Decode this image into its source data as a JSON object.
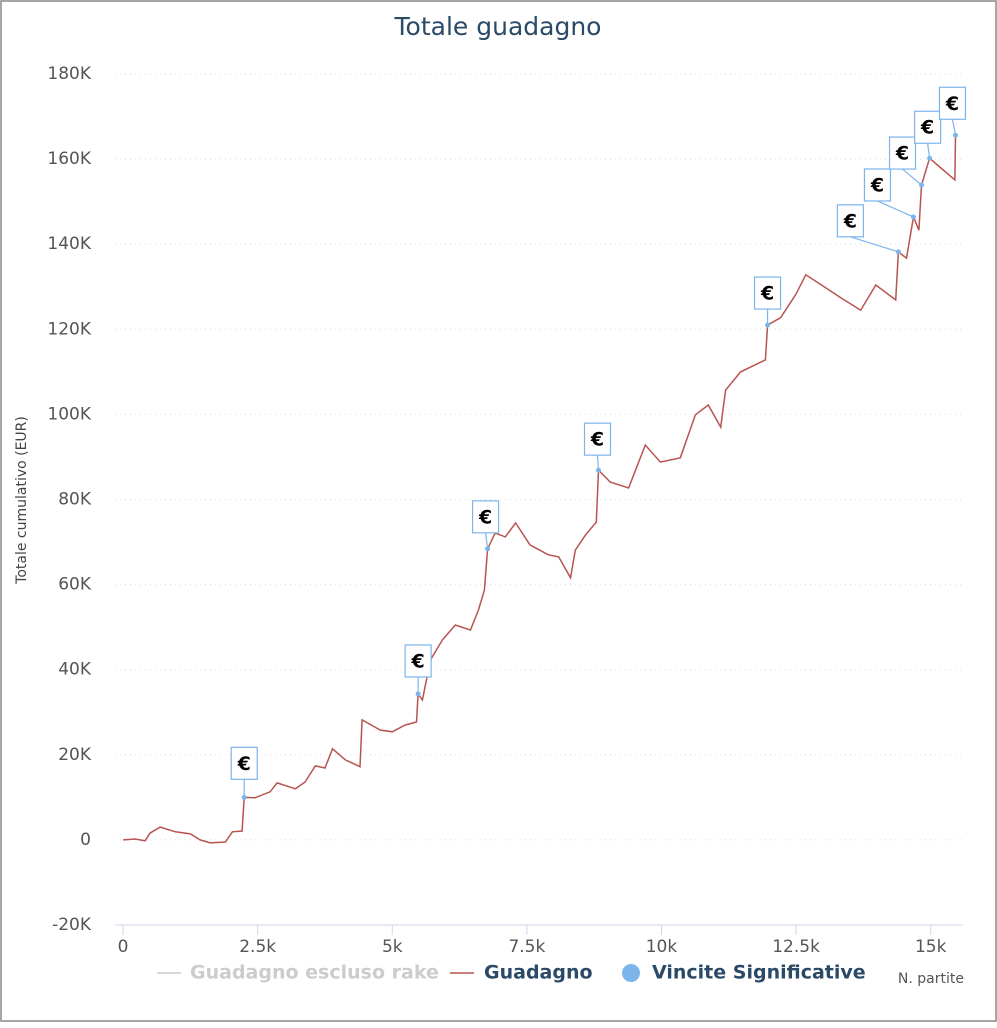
{
  "chart_data": {
    "type": "line",
    "title": "Totale guadagno",
    "y_label": "Totale cumulativo (EUR)",
    "x_label": "N. partite",
    "xlim": [
      -150,
      15600
    ],
    "ylim": [
      -20000,
      180000
    ],
    "xticks": [
      0,
      {
        "value": 2500,
        "label": "2.5k"
      },
      {
        "value": 5000,
        "label": "5k"
      },
      {
        "value": 7500,
        "label": "7.5k"
      },
      {
        "value": 10000,
        "label": "10k"
      },
      {
        "value": 12500,
        "label": "12.5k"
      },
      {
        "value": 15000,
        "label": "15k"
      }
    ],
    "yticks": [
      {
        "value": -20000,
        "label": "-20K"
      },
      0,
      {
        "value": 20000,
        "label": "20K"
      },
      {
        "value": 40000,
        "label": "40K"
      },
      {
        "value": 60000,
        "label": "60K"
      },
      {
        "value": 80000,
        "label": "80K"
      },
      {
        "value": 100000,
        "label": "100K"
      },
      {
        "value": 120000,
        "label": "120K"
      },
      {
        "value": 140000,
        "label": "140K"
      },
      {
        "value": 160000,
        "label": "160K"
      },
      {
        "value": 180000,
        "label": "180K"
      }
    ],
    "grid": true,
    "flag_label": "€",
    "series": [
      {
        "name": "Guadagno escluso rake",
        "color": "#cccccc",
        "visible": false
      },
      {
        "name": "Guadagno",
        "color": "#b85450",
        "x": [
          0,
          220,
          410,
          500,
          690,
          970,
          1250,
          1430,
          1620,
          1900,
          2030,
          2210,
          2250,
          2450,
          2730,
          2860,
          3200,
          3380,
          3570,
          3750,
          3890,
          4130,
          4400,
          4440,
          4780,
          5000,
          5240,
          5450,
          5480,
          5560,
          5710,
          5930,
          6170,
          6450,
          6600,
          6710,
          6770,
          6910,
          7100,
          7290,
          7560,
          7900,
          8090,
          8310,
          8400,
          8590,
          8790,
          8830,
          9050,
          9390,
          9700,
          9980,
          10350,
          10630,
          10870,
          11100,
          11190,
          11470,
          11930,
          11970,
          12210,
          12490,
          12680,
          12960,
          13330,
          13700,
          13980,
          14350,
          14400,
          14550,
          14680,
          14780,
          14830,
          14980,
          15190,
          15450,
          15460
        ],
        "values": [
          0,
          200,
          -200,
          1600,
          3000,
          1900,
          1400,
          0,
          -700,
          -500,
          1900,
          2100,
          10000,
          9900,
          11300,
          13400,
          12000,
          13600,
          17400,
          16900,
          21400,
          18800,
          17200,
          28200,
          25800,
          25400,
          27000,
          27700,
          34300,
          32900,
          42300,
          47000,
          50500,
          49300,
          54000,
          58700,
          68400,
          72100,
          71200,
          74500,
          69300,
          67000,
          66500,
          61600,
          68100,
          71700,
          74700,
          86900,
          84100,
          82700,
          92800,
          88800,
          89800,
          99900,
          102200,
          97000,
          105700,
          110000,
          112800,
          121000,
          122700,
          128100,
          132800,
          130500,
          127400,
          124500,
          130400,
          126900,
          138200,
          136700,
          146400,
          143300,
          153900,
          160200,
          157900,
          155100,
          165600
        ]
      },
      {
        "name": "Vincite Significative",
        "color": "#7cb5ec",
        "type": "scatter",
        "x": [
          2250,
          5480,
          6770,
          8830,
          11970,
          14400,
          14680,
          14830,
          14980,
          15460
        ],
        "values": [
          10000,
          34300,
          68400,
          86900,
          121000,
          138200,
          146400,
          153900,
          160200,
          165600
        ]
      }
    ]
  }
}
